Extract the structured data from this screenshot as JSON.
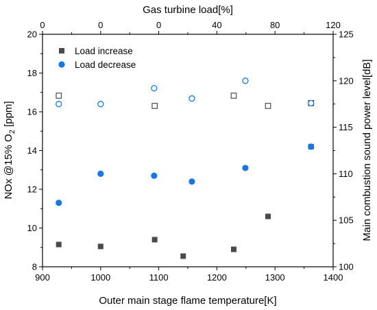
{
  "chart_data": {
    "type": "scatter",
    "axes": {
      "x_bottom": {
        "label": "Outer main stage flame temperature[K]",
        "range": [
          900,
          1400
        ],
        "ticks": [
          900,
          1000,
          1100,
          1200,
          1300,
          1400
        ]
      },
      "x_top": {
        "label": "Gas turbine load[%]",
        "tick_labels": [
          "0",
          "0",
          "0",
          "40",
          "80",
          "120"
        ],
        "tick_positions_bottom_units": [
          900,
          1000,
          1100,
          1200,
          1300,
          1400
        ]
      },
      "y_left": {
        "label_main": "NOx @15% O",
        "label_sub": "2",
        "label_tail": " [ppm]",
        "range": [
          8,
          20
        ],
        "ticks": [
          8,
          10,
          12,
          14,
          16,
          18,
          20
        ]
      },
      "y_right": {
        "label": "Main combustion  sound power level[dB]",
        "range": [
          100,
          125
        ],
        "ticks": [
          100,
          105,
          110,
          115,
          120,
          125
        ]
      }
    },
    "legend": {
      "placement": "top-left",
      "entries": [
        {
          "name": "Load increase",
          "marker": "square",
          "color": "#4a4a4a"
        },
        {
          "name": "Load decrease",
          "marker": "circle",
          "color": "#1877e6"
        }
      ]
    },
    "series": [
      {
        "name": "Load increase",
        "axis": "left",
        "marker": "square",
        "filled": true,
        "color": "#4a4a4a",
        "points": [
          [
            928,
            9.15
          ],
          [
            1000,
            9.05
          ],
          [
            1093,
            9.4
          ],
          [
            1142,
            8.55
          ],
          [
            1229,
            8.9
          ],
          [
            1288,
            10.6
          ],
          [
            1362,
            14.2
          ]
        ]
      },
      {
        "name": "Load decrease",
        "axis": "left",
        "marker": "circle",
        "filled": true,
        "color": "#1877e6",
        "points": [
          [
            928,
            11.3
          ],
          [
            1000,
            12.8
          ],
          [
            1092,
            12.7
          ],
          [
            1157,
            12.4
          ],
          [
            1249,
            13.1
          ],
          [
            1362,
            14.2
          ]
        ]
      },
      {
        "name": "Load increase",
        "axis": "right",
        "marker": "square",
        "filled": false,
        "color": "#4a4a4a",
        "points": [
          [
            928,
            118.4
          ],
          [
            1093,
            117.3
          ],
          [
            1229,
            118.4
          ],
          [
            1288,
            117.3
          ],
          [
            1362,
            117.6
          ]
        ]
      },
      {
        "name": "Load decrease",
        "axis": "right",
        "marker": "circle",
        "filled": false,
        "color": "#1877e6",
        "points": [
          [
            928,
            117.5
          ],
          [
            1000,
            117.5
          ],
          [
            1092,
            119.2
          ],
          [
            1157,
            118.1
          ],
          [
            1249,
            120.0
          ],
          [
            1362,
            117.6
          ]
        ]
      }
    ]
  }
}
